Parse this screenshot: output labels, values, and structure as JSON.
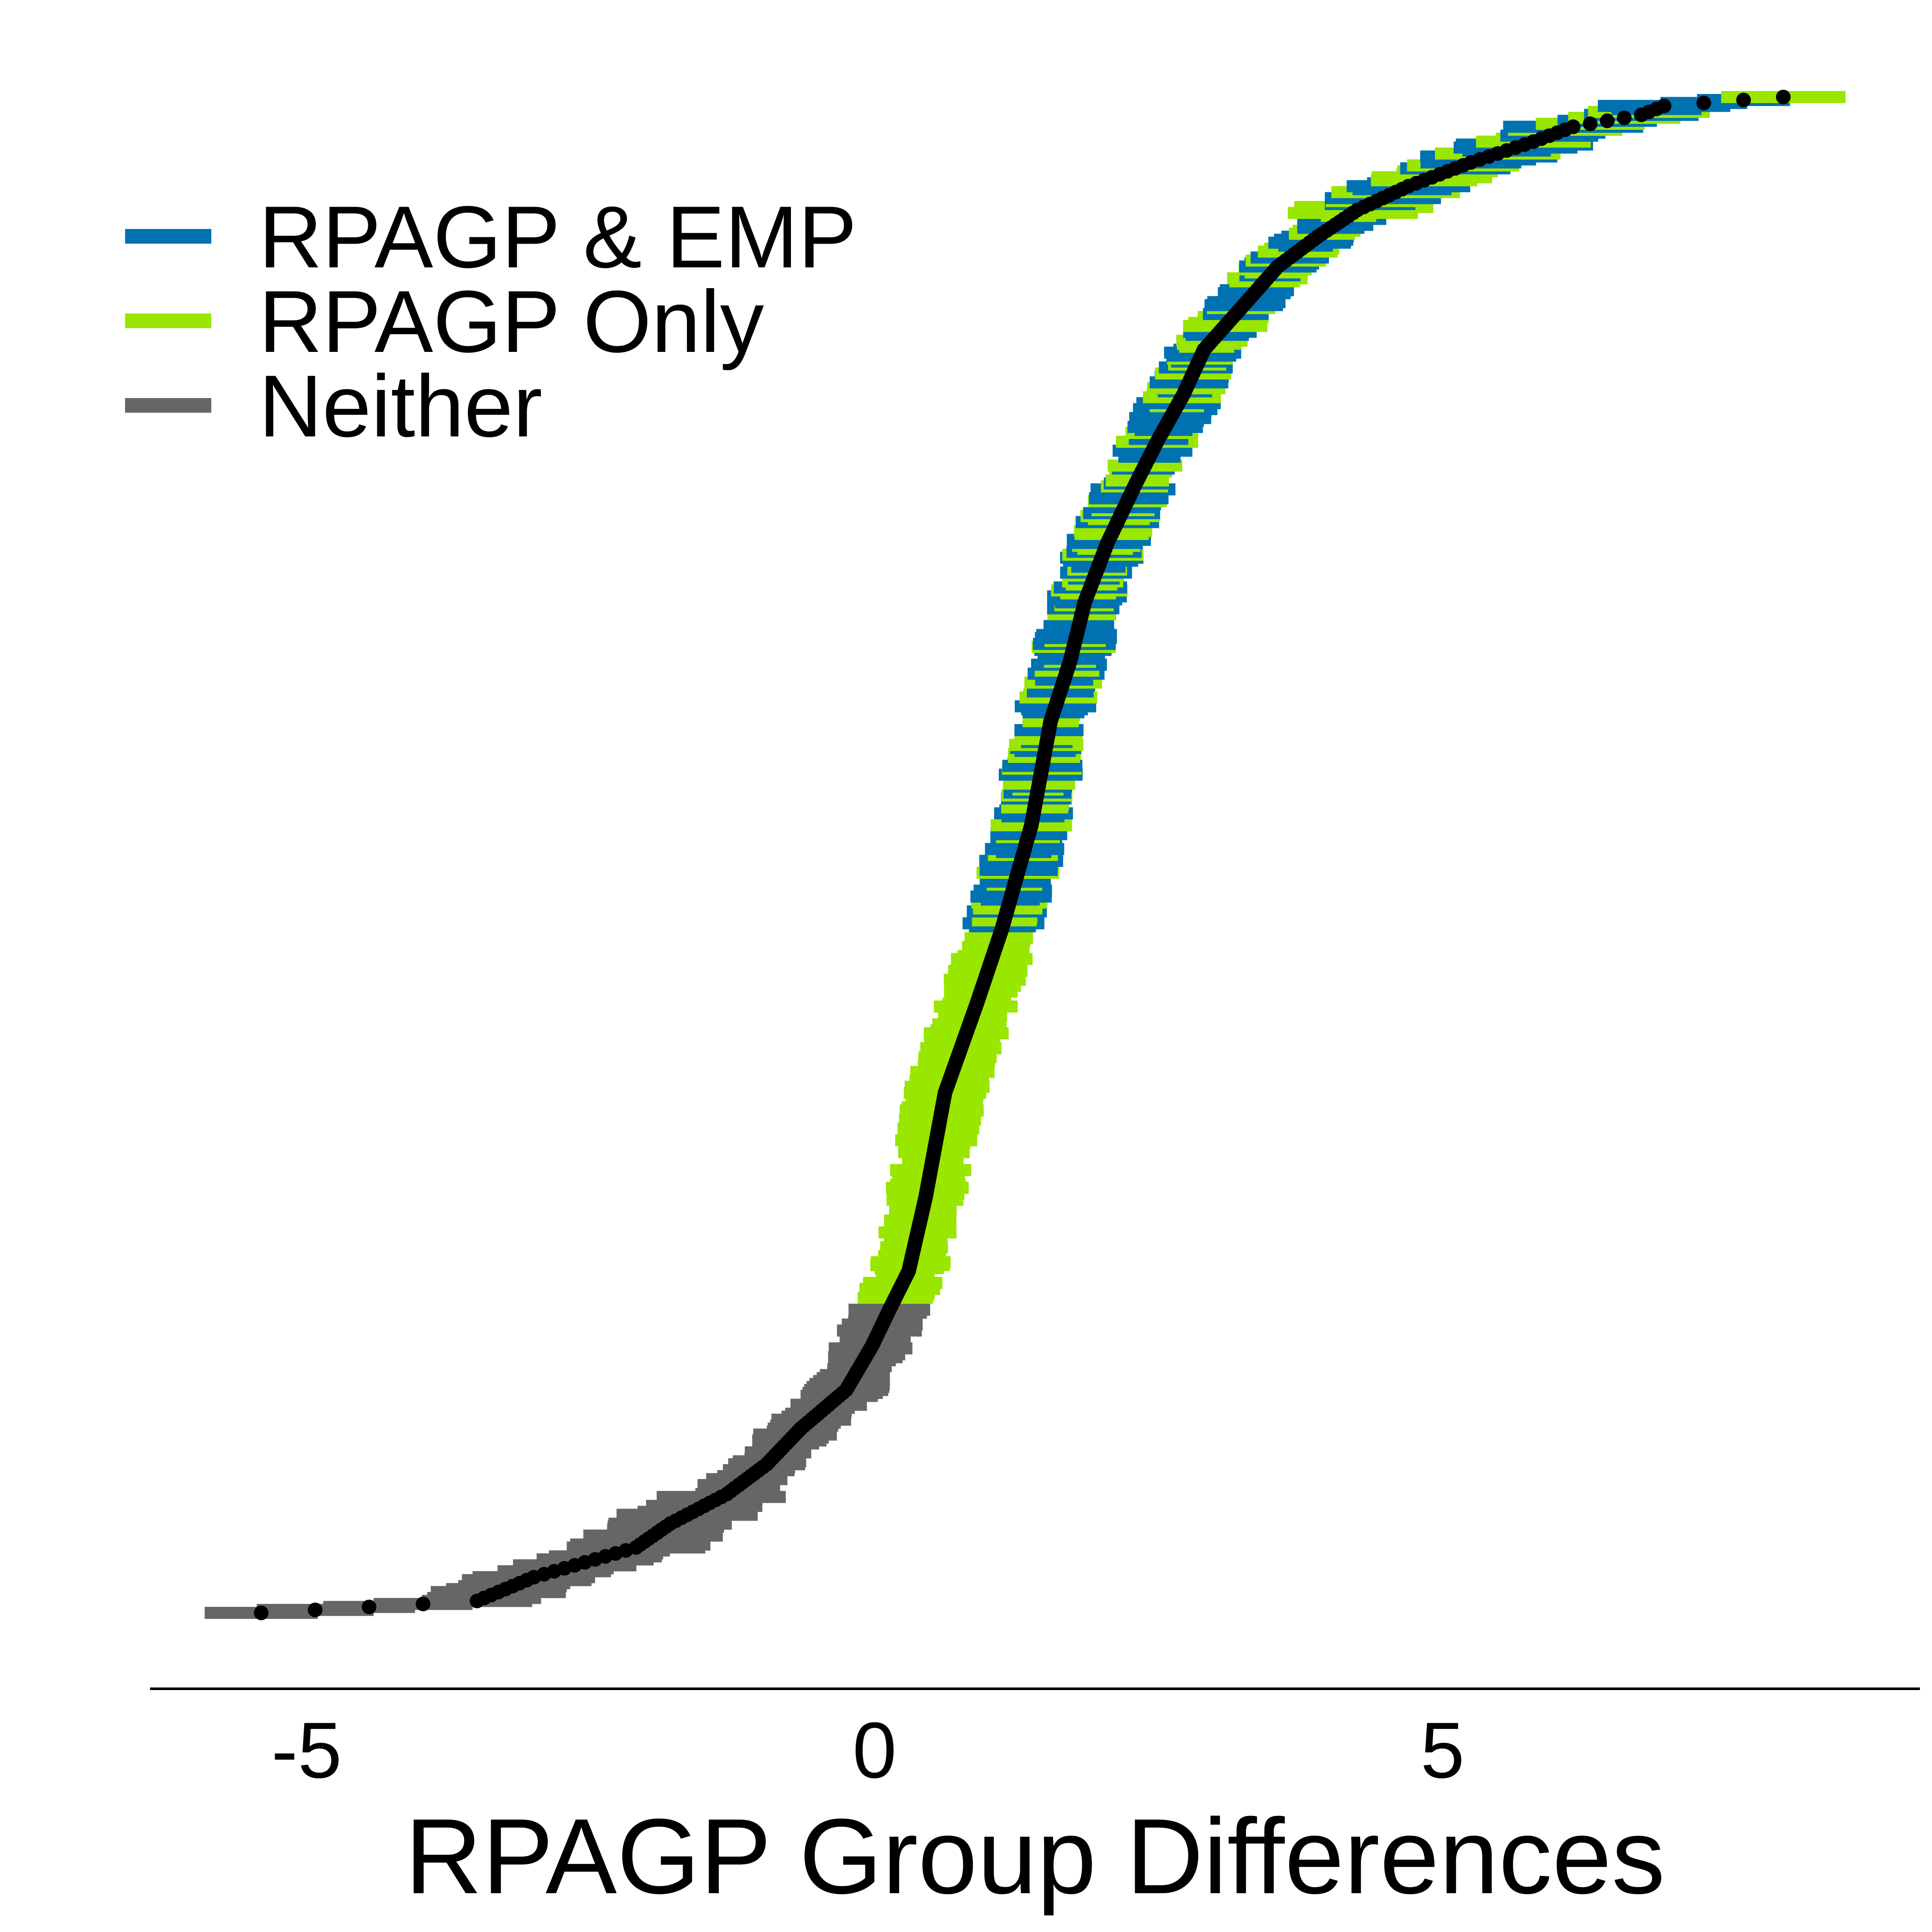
{
  "chart_data": {
    "type": "scatter",
    "title": "",
    "xlabel": "RPAGP Group Differences",
    "ylabel": "",
    "xlim": [
      -6.35,
      9.2
    ],
    "ylim": [
      -2,
      512
    ],
    "x_ticks": [
      -5,
      0,
      5
    ],
    "x_tick_labels": [
      "-5",
      "0",
      "5"
    ],
    "grid": false,
    "legend_position": "upper-left",
    "point_color": "#000000",
    "series": [
      {
        "name": "RPAGP & EMP",
        "color": "#0072B2"
      },
      {
        "name": "RPAGP Only",
        "color": "#99E600"
      },
      {
        "name": "Neither",
        "color": "#666666"
      }
    ],
    "curve_keypoints": [
      {
        "rank": 0,
        "x": -5.4
      },
      {
        "rank": 4,
        "x": -3.5
      },
      {
        "rank": 12,
        "x": -3.0
      },
      {
        "rank": 22,
        "x": -2.1
      },
      {
        "rank": 30,
        "x": -1.8
      },
      {
        "rank": 40,
        "x": -1.3
      },
      {
        "rank": 50,
        "x": -0.95
      },
      {
        "rank": 62,
        "x": -0.65
      },
      {
        "rank": 75,
        "x": -0.25
      },
      {
        "rank": 90,
        "x": -0.02
      },
      {
        "rank": 102,
        "x": 0.13
      },
      {
        "rank": 115,
        "x": 0.3
      },
      {
        "rank": 140,
        "x": 0.45
      },
      {
        "rank": 175,
        "x": 0.62
      },
      {
        "rank": 205,
        "x": 0.9
      },
      {
        "rank": 230,
        "x": 1.12
      },
      {
        "rank": 265,
        "x": 1.38
      },
      {
        "rank": 300,
        "x": 1.55
      },
      {
        "rank": 320,
        "x": 1.72
      },
      {
        "rank": 340,
        "x": 1.85
      },
      {
        "rank": 360,
        "x": 2.05
      },
      {
        "rank": 380,
        "x": 2.3
      },
      {
        "rank": 395,
        "x": 2.5
      },
      {
        "rank": 410,
        "x": 2.72
      },
      {
        "rank": 425,
        "x": 2.9
      },
      {
        "rank": 440,
        "x": 3.25
      },
      {
        "rank": 453,
        "x": 3.55
      },
      {
        "rank": 463,
        "x": 3.9
      },
      {
        "rank": 472,
        "x": 4.25
      },
      {
        "rank": 480,
        "x": 4.7
      },
      {
        "rank": 488,
        "x": 5.25
      },
      {
        "rank": 495,
        "x": 5.8
      },
      {
        "rank": 500,
        "x": 6.15
      },
      {
        "rank": 504,
        "x": 6.75
      },
      {
        "rank": 507,
        "x": 6.95
      },
      {
        "rank": 510,
        "x": 8.0
      }
    ],
    "color_bands": [
      {
        "from_rank": 0,
        "to_rank": 105,
        "series": "Neither"
      },
      {
        "from_rank": 106,
        "to_rank": 230,
        "series": "RPAGP Only"
      },
      {
        "from_rank": 231,
        "to_rank": 510,
        "series": "RPAGP & EMP",
        "minority_series": "RPAGP Only",
        "minority_fraction": 0.35
      }
    ],
    "ci_half_width_typical": 0.3,
    "ci_half_width_tails": 0.5
  }
}
